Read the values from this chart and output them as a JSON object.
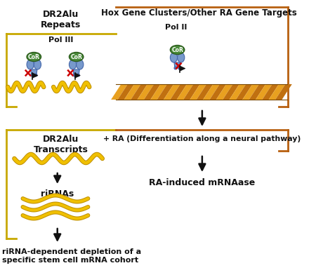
{
  "bg_color": "#ffffff",
  "left_bracket_color": "#c8a800",
  "right_bracket_color": "#b86010",
  "left_box_label": "DR2Alu\nRepeats",
  "right_box_label": "Hox Gene Clusters/Other RA Gene Targets",
  "pol3_label": "Pol III",
  "pol2_label": "Pol II",
  "cor_color": "#4a8a3a",
  "cor_edge_color": "#2a5a1a",
  "receptor_color": "#7799cc",
  "receptor_edge": "#4466aa",
  "dna_color1": "#e8a020",
  "dna_color2": "#c07010",
  "yellow_dna_color": "#f0c000",
  "yellow_dna_edge": "#c09000",
  "arrow_color": "#111111",
  "ra_label": "+ RA (Differentiation along a neural pathway)",
  "left_bottom_label": "DR2Alu\nTranscripts",
  "rirna_label": "riRNAs",
  "mrnaase_label": "RA-induced mRNAase",
  "bottom_label": "riRNA-dependent depletion of a\nspecific stem cell mRNA cohort",
  "red_x_color": "#cc0000",
  "flag_color": "#111111"
}
